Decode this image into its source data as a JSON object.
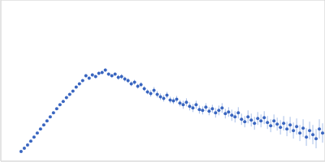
{
  "chart_data": {
    "type": "scatter",
    "x": [
      0.025,
      0.029,
      0.033,
      0.037,
      0.041,
      0.045,
      0.049,
      0.053,
      0.057,
      0.061,
      0.065,
      0.069,
      0.073,
      0.077,
      0.081,
      0.085,
      0.089,
      0.093,
      0.097,
      0.101,
      0.105,
      0.109,
      0.113,
      0.117,
      0.121,
      0.125,
      0.129,
      0.133,
      0.137,
      0.141,
      0.145,
      0.149,
      0.153,
      0.157,
      0.161,
      0.165,
      0.169,
      0.173,
      0.177,
      0.181,
      0.185,
      0.189,
      0.193,
      0.197,
      0.201,
      0.205,
      0.209,
      0.213,
      0.217,
      0.221,
      0.225,
      0.229,
      0.233,
      0.237,
      0.241,
      0.245,
      0.249,
      0.253,
      0.257,
      0.261,
      0.265,
      0.269,
      0.273,
      0.277,
      0.281,
      0.285,
      0.289,
      0.293,
      0.297,
      0.301,
      0.305,
      0.309,
      0.313,
      0.317,
      0.321,
      0.325,
      0.329,
      0.333,
      0.337,
      0.341,
      0.345,
      0.349,
      0.353,
      0.357,
      0.361,
      0.365,
      0.369,
      0.373,
      0.377,
      0.381,
      0.385,
      0.389,
      0.393,
      0.397
    ],
    "values": [
      0.12,
      0.16,
      0.2,
      0.25,
      0.3,
      0.35,
      0.4,
      0.45,
      0.5,
      0.55,
      0.6,
      0.65,
      0.7,
      0.74,
      0.79,
      0.83,
      0.87,
      0.92,
      0.96,
      1.0,
      1.06,
      1.03,
      1.07,
      1.05,
      1.09,
      1.1,
      1.13,
      1.08,
      1.06,
      1.08,
      1.04,
      1.05,
      1.02,
      1.0,
      0.96,
      0.98,
      0.93,
      0.95,
      0.9,
      0.86,
      0.84,
      0.88,
      0.83,
      0.8,
      0.78,
      0.82,
      0.76,
      0.75,
      0.77,
      0.72,
      0.7,
      0.73,
      0.68,
      0.66,
      0.7,
      0.64,
      0.63,
      0.67,
      0.62,
      0.65,
      0.6,
      0.63,
      0.66,
      0.59,
      0.61,
      0.57,
      0.55,
      0.6,
      0.52,
      0.49,
      0.55,
      0.51,
      0.47,
      0.53,
      0.5,
      0.54,
      0.48,
      0.44,
      0.5,
      0.46,
      0.42,
      0.47,
      0.4,
      0.45,
      0.38,
      0.43,
      0.35,
      0.41,
      0.3,
      0.38,
      0.33,
      0.28,
      0.4,
      0.35
    ],
    "errors": [
      0.01,
      0.01,
      0.01,
      0.01,
      0.01,
      0.01,
      0.01,
      0.01,
      0.01,
      0.01,
      0.01,
      0.01,
      0.01,
      0.01,
      0.01,
      0.01,
      0.01,
      0.01,
      0.01,
      0.01,
      0.02,
      0.02,
      0.02,
      0.02,
      0.02,
      0.02,
      0.02,
      0.02,
      0.02,
      0.02,
      0.03,
      0.03,
      0.03,
      0.03,
      0.03,
      0.03,
      0.03,
      0.03,
      0.03,
      0.03,
      0.04,
      0.04,
      0.04,
      0.04,
      0.04,
      0.04,
      0.04,
      0.04,
      0.04,
      0.04,
      0.05,
      0.05,
      0.05,
      0.05,
      0.05,
      0.05,
      0.05,
      0.05,
      0.05,
      0.05,
      0.06,
      0.06,
      0.06,
      0.06,
      0.06,
      0.07,
      0.07,
      0.07,
      0.07,
      0.07,
      0.08,
      0.08,
      0.08,
      0.08,
      0.08,
      0.08,
      0.08,
      0.08,
      0.08,
      0.08,
      0.09,
      0.09,
      0.09,
      0.1,
      0.1,
      0.1,
      0.1,
      0.11,
      0.11,
      0.11,
      0.12,
      0.12,
      0.12,
      0.12
    ],
    "xlim": [
      0,
      0.4
    ],
    "ylim": [
      0,
      2
    ],
    "xticks": [
      0.115
    ],
    "yticks": [
      1
    ],
    "grid": true,
    "tick_labels": false,
    "color": "#3a66c0",
    "marker": "circle"
  }
}
